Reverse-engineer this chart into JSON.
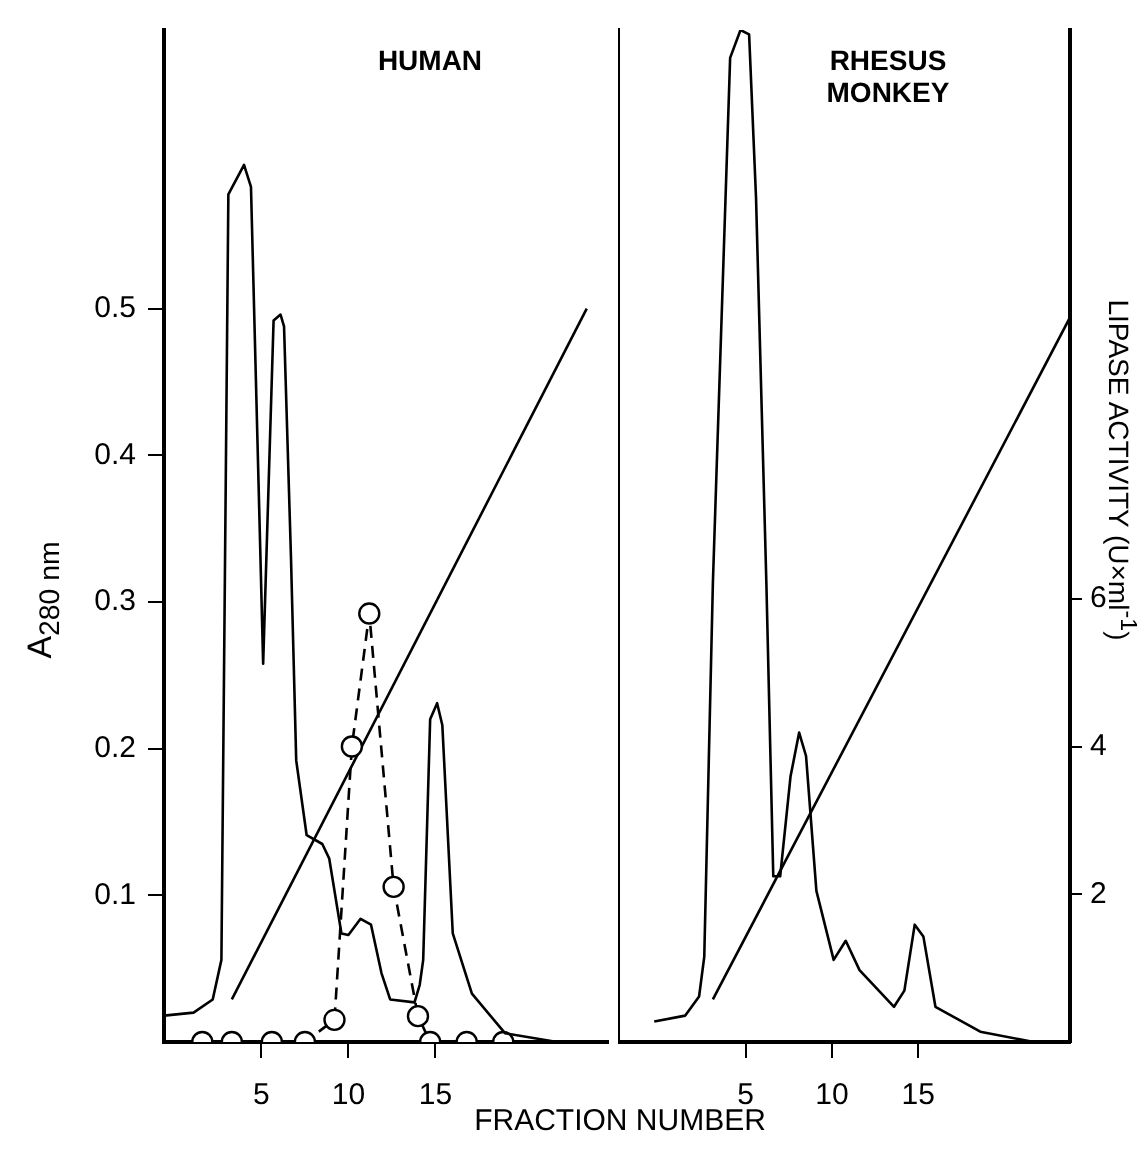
{
  "chart_data": [
    {
      "type": "line",
      "title": "HUMAN",
      "xlabel": "FRACTION NUMBER",
      "ylabel": "A$_{280 nm}$",
      "xlim": [
        -0.6,
        24.9
      ],
      "xticks": [
        5,
        10,
        15
      ],
      "ylim": [
        0,
        0.69
      ],
      "yticks": [
        0.1,
        0.2,
        0.3,
        0.4,
        0.5
      ],
      "y2lim": [
        0,
        13.7
      ],
      "series": [
        {
          "color": "#000000",
          "marker": "none",
          "line_style": "solid",
          "x": [
            -0.6,
            1.1,
            2.2,
            2.7,
            3.1,
            4.0,
            4.4,
            5.1,
            5.7,
            6.1,
            6.3,
            6.7,
            7.0,
            7.6,
            8.5,
            8.9,
            9.6,
            10.0,
            10.7,
            11.3,
            11.9,
            12.4,
            13.8,
            14.1,
            14.3,
            14.7,
            15.1,
            15.4,
            16.0,
            17.1,
            19.0,
            22.0,
            24.9
          ],
          "values": [
            0.018,
            0.02,
            0.029,
            0.056,
            0.578,
            0.598,
            0.583,
            0.258,
            0.492,
            0.496,
            0.488,
            0.33,
            0.192,
            0.141,
            0.135,
            0.125,
            0.074,
            0.073,
            0.084,
            0.08,
            0.047,
            0.029,
            0.027,
            0.039,
            0.056,
            0.22,
            0.231,
            0.216,
            0.074,
            0.033,
            0.006,
            0,
            0
          ]
        },
        {
          "color": "#000000",
          "marker": "circle",
          "line_style": "dashed",
          "axis": "y2",
          "x": [
            1.6,
            3.3,
            5.6,
            7.5,
            9.2,
            10.2,
            11.2,
            12.6,
            14.0,
            14.7,
            16.8,
            18.9
          ],
          "values": [
            0,
            0,
            0,
            0,
            0.3,
            4.0,
            5.8,
            2.1,
            0.35,
            0,
            0,
            0
          ]
        },
        {
          "color": "#000000",
          "marker": "none",
          "line_style": "solid",
          "x": [
            3.3,
            23.7
          ],
          "values": [
            0.029,
            0.5
          ]
        }
      ]
    },
    {
      "type": "line",
      "title": "RHESUS MONKEY",
      "y2label": "LIPASE ACTIVITY (U×ml$^{-1}$)",
      "xlim": [
        -2.4,
        23.8
      ],
      "xticks": [
        5,
        10,
        15
      ],
      "ylim": [
        0,
        0.69
      ],
      "y2lim": [
        0,
        13.7
      ],
      "y2ticks": [
        2,
        4,
        6
      ],
      "series": [
        {
          "color": "#000000",
          "marker": "none",
          "line_style": "solid",
          "x": [
            -0.3,
            1.5,
            2.3,
            2.6,
            3.1,
            4.1,
            4.7,
            5.2,
            5.6,
            6.2,
            6.6,
            7.0,
            7.6,
            8.1,
            8.5,
            9.1,
            10.1,
            10.8,
            11.6,
            13.6,
            14.2,
            14.8,
            15.3,
            16.0,
            18.6,
            21.7
          ],
          "values": [
            0.014,
            0.018,
            0.031,
            0.058,
            0.313,
            0.671,
            0.69,
            0.687,
            0.576,
            0.313,
            0.113,
            0.113,
            0.181,
            0.211,
            0.195,
            0.103,
            0.056,
            0.069,
            0.049,
            0.024,
            0.035,
            0.08,
            0.072,
            0.024,
            0.007,
            0
          ]
        },
        {
          "color": "#000000",
          "marker": "none",
          "line_style": "solid",
          "x": [
            3.1,
            23.8
          ],
          "values": [
            0.029,
            0.494
          ]
        }
      ]
    }
  ]
}
